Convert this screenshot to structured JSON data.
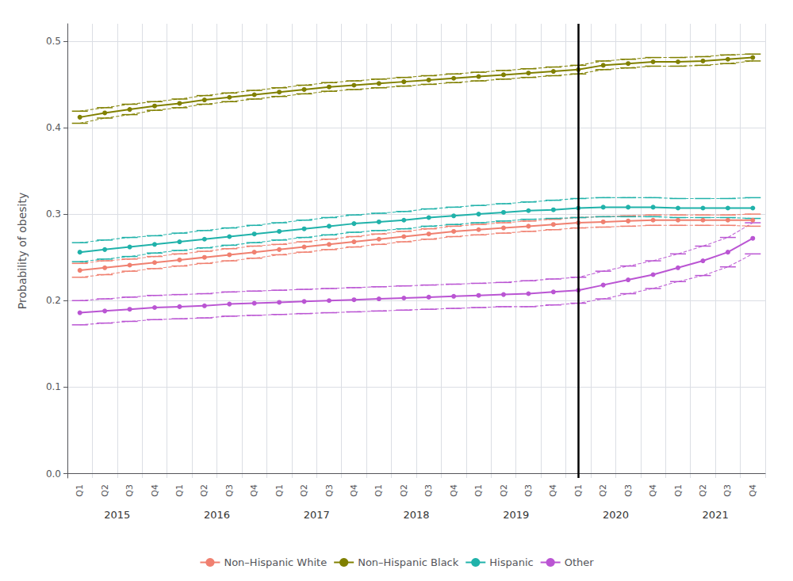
{
  "chart_data": {
    "type": "line",
    "ylabel": "Probability of obesity",
    "categories": [
      "Q1",
      "Q2",
      "Q3",
      "Q4",
      "Q1",
      "Q2",
      "Q3",
      "Q4",
      "Q1",
      "Q2",
      "Q3",
      "Q4",
      "Q1",
      "Q2",
      "Q3",
      "Q4",
      "Q1",
      "Q2",
      "Q3",
      "Q4",
      "Q1",
      "Q2",
      "Q3",
      "Q4",
      "Q1",
      "Q2",
      "Q3",
      "Q4"
    ],
    "annotations": [
      "2015",
      "2016",
      "2017",
      "2018",
      "2019",
      "2020",
      "2021"
    ],
    "series": [
      {
        "name": "Non–Hispanic White",
        "color": "#F08070",
        "values": [
          0.235,
          0.238,
          0.241,
          0.244,
          0.247,
          0.25,
          0.253,
          0.256,
          0.259,
          0.262,
          0.265,
          0.268,
          0.271,
          0.274,
          0.277,
          0.28,
          0.282,
          0.284,
          0.286,
          0.288,
          0.29,
          0.291,
          0.292,
          0.293,
          0.293,
          0.293,
          0.293,
          0.293
        ],
        "ci_upper": [
          0.243,
          0.246,
          0.248,
          0.251,
          0.254,
          0.257,
          0.26,
          0.263,
          0.265,
          0.268,
          0.271,
          0.274,
          0.277,
          0.28,
          0.283,
          0.286,
          0.288,
          0.29,
          0.292,
          0.294,
          0.296,
          0.297,
          0.298,
          0.299,
          0.299,
          0.299,
          0.299,
          0.3
        ],
        "ci_lower": [
          0.227,
          0.23,
          0.234,
          0.237,
          0.24,
          0.243,
          0.246,
          0.249,
          0.253,
          0.256,
          0.259,
          0.262,
          0.265,
          0.268,
          0.271,
          0.274,
          0.276,
          0.278,
          0.28,
          0.282,
          0.284,
          0.285,
          0.286,
          0.287,
          0.287,
          0.287,
          0.287,
          0.286
        ]
      },
      {
        "name": "Non–Hispanic Black",
        "color": "#808000",
        "values": [
          0.412,
          0.417,
          0.421,
          0.425,
          0.428,
          0.432,
          0.435,
          0.438,
          0.441,
          0.444,
          0.447,
          0.449,
          0.451,
          0.453,
          0.455,
          0.457,
          0.459,
          0.461,
          0.463,
          0.465,
          0.467,
          0.472,
          0.474,
          0.476,
          0.476,
          0.477,
          0.479,
          0.481
        ],
        "ci_upper": [
          0.419,
          0.423,
          0.427,
          0.43,
          0.433,
          0.437,
          0.44,
          0.443,
          0.446,
          0.449,
          0.452,
          0.454,
          0.456,
          0.458,
          0.46,
          0.462,
          0.464,
          0.466,
          0.468,
          0.47,
          0.472,
          0.477,
          0.479,
          0.481,
          0.481,
          0.482,
          0.484,
          0.485
        ],
        "ci_lower": [
          0.405,
          0.411,
          0.415,
          0.42,
          0.423,
          0.427,
          0.43,
          0.433,
          0.436,
          0.439,
          0.442,
          0.444,
          0.446,
          0.448,
          0.45,
          0.452,
          0.454,
          0.456,
          0.458,
          0.46,
          0.462,
          0.467,
          0.469,
          0.471,
          0.471,
          0.472,
          0.474,
          0.477
        ]
      },
      {
        "name": "Hispanic",
        "color": "#20B2AA",
        "values": [
          0.256,
          0.259,
          0.262,
          0.265,
          0.268,
          0.271,
          0.274,
          0.277,
          0.28,
          0.283,
          0.286,
          0.289,
          0.291,
          0.293,
          0.296,
          0.298,
          0.3,
          0.302,
          0.304,
          0.305,
          0.307,
          0.308,
          0.308,
          0.308,
          0.307,
          0.307,
          0.307,
          0.307
        ],
        "ci_upper": [
          0.267,
          0.27,
          0.273,
          0.275,
          0.278,
          0.281,
          0.284,
          0.287,
          0.29,
          0.293,
          0.296,
          0.299,
          0.301,
          0.303,
          0.306,
          0.308,
          0.31,
          0.312,
          0.314,
          0.316,
          0.318,
          0.319,
          0.319,
          0.319,
          0.318,
          0.318,
          0.318,
          0.319
        ],
        "ci_lower": [
          0.245,
          0.248,
          0.251,
          0.255,
          0.258,
          0.261,
          0.264,
          0.267,
          0.27,
          0.273,
          0.276,
          0.279,
          0.281,
          0.283,
          0.286,
          0.288,
          0.29,
          0.292,
          0.294,
          0.295,
          0.296,
          0.297,
          0.297,
          0.297,
          0.296,
          0.296,
          0.296,
          0.295
        ]
      },
      {
        "name": "Other",
        "color": "#BA55D3",
        "values": [
          0.186,
          0.188,
          0.19,
          0.192,
          0.193,
          0.194,
          0.196,
          0.197,
          0.198,
          0.199,
          0.2,
          0.201,
          0.202,
          0.203,
          0.204,
          0.205,
          0.206,
          0.207,
          0.208,
          0.21,
          0.212,
          0.218,
          0.224,
          0.23,
          0.238,
          0.246,
          0.256,
          0.272
        ],
        "ci_upper": [
          0.2,
          0.202,
          0.204,
          0.206,
          0.207,
          0.208,
          0.21,
          0.211,
          0.212,
          0.213,
          0.214,
          0.215,
          0.216,
          0.217,
          0.218,
          0.219,
          0.22,
          0.221,
          0.223,
          0.225,
          0.227,
          0.234,
          0.24,
          0.246,
          0.254,
          0.263,
          0.273,
          0.29
        ],
        "ci_lower": [
          0.172,
          0.174,
          0.176,
          0.178,
          0.179,
          0.18,
          0.182,
          0.183,
          0.184,
          0.185,
          0.186,
          0.187,
          0.188,
          0.189,
          0.19,
          0.191,
          0.192,
          0.193,
          0.193,
          0.195,
          0.197,
          0.202,
          0.208,
          0.214,
          0.222,
          0.229,
          0.239,
          0.254
        ]
      }
    ],
    "changepoint": {
      "index": 20,
      "color": "#000000"
    },
    "ylim": [
      -0.005,
      0.52
    ],
    "yticks": [
      {
        "value": 0.0,
        "label": "0.0"
      },
      0.1,
      0.2,
      0.3,
      0.4,
      0.5
    ],
    "grid": true,
    "legend": "bottom",
    "marker": "circle"
  }
}
